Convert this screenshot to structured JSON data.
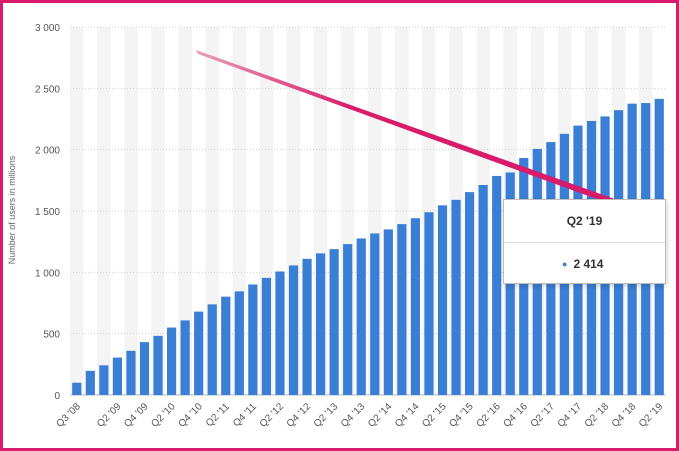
{
  "chart_data": {
    "type": "bar",
    "ylabel": "Number of users in millions",
    "ylim": [
      0,
      3000
    ],
    "yticks": [
      0,
      500,
      1000,
      1500,
      2000,
      2500,
      3000
    ],
    "ytick_labels": [
      "0",
      "500",
      "1 000",
      "1 500",
      "2 000",
      "2 500",
      "3 000"
    ],
    "categories": [
      "Q3 '08",
      "Q4 '08",
      "Q1 '09",
      "Q2 '09",
      "Q3 '09",
      "Q4 '09",
      "Q1 '10",
      "Q2 '10",
      "Q3 '10",
      "Q4 '10",
      "Q1 '11",
      "Q2 '11",
      "Q3 '11",
      "Q4 '11",
      "Q1 '12",
      "Q2 '12",
      "Q3 '12",
      "Q4 '12",
      "Q1 '13",
      "Q2 '13",
      "Q3 '13",
      "Q4 '13",
      "Q1 '14",
      "Q2 '14",
      "Q3 '14",
      "Q4 '14",
      "Q1 '15",
      "Q2 '15",
      "Q3 '15",
      "Q4 '15",
      "Q1 '16",
      "Q2 '16",
      "Q3 '16",
      "Q4 '16",
      "Q1 '17",
      "Q2 '17",
      "Q3 '17",
      "Q4 '17",
      "Q1 '18",
      "Q2 '18",
      "Q3 '18",
      "Q4 '18",
      "Q1 '19",
      "Q2 '19"
    ],
    "values": [
      100,
      197,
      242,
      305,
      360,
      431,
      482,
      550,
      608,
      680,
      739,
      802,
      845,
      901,
      955,
      1007,
      1056,
      1110,
      1155,
      1189,
      1230,
      1276,
      1317,
      1350,
      1393,
      1441,
      1490,
      1546,
      1591,
      1654,
      1712,
      1786,
      1814,
      1932,
      2006,
      2062,
      2129,
      2196,
      2234,
      2271,
      2322,
      2375,
      2380,
      2414
    ],
    "xtick_labels": [
      "Q3 '08",
      "Q2 '09",
      "Q4 '09",
      "Q2 '10",
      "Q4 '10",
      "Q2 '11",
      "Q4 '11",
      "Q2 '12",
      "Q4 '12",
      "Q2 '13",
      "Q4 '13",
      "Q2 '14",
      "Q4 '14",
      "Q2 '15",
      "Q4 '15",
      "Q2 '16",
      "Q4 '16",
      "Q2 '17",
      "Q4 '17",
      "Q2 '18",
      "Q4 '18",
      "Q2 '19"
    ],
    "grid": true,
    "bar_color": "#3a7fd5",
    "band_color": "#f4f4f4"
  },
  "tooltip": {
    "title": "Q2 '19",
    "bullet": "●",
    "value": "2 414"
  },
  "colors": {
    "frame": "#d81b6a",
    "arrow": "#d81b6a"
  }
}
